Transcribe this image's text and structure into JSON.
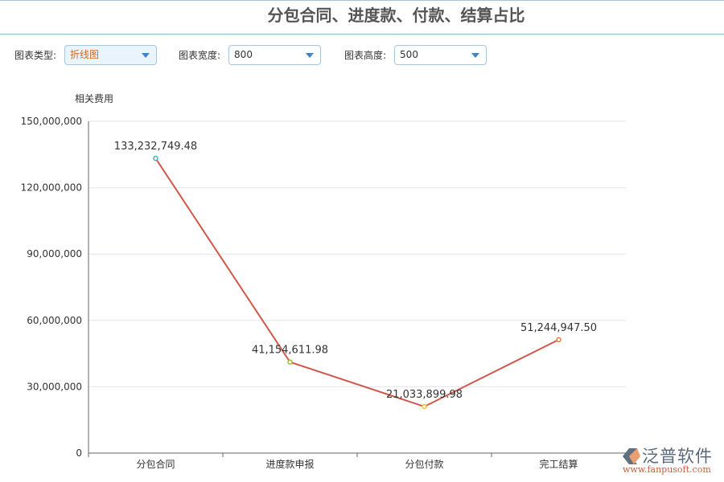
{
  "title": "分包合同、进度款、付款、结算占比",
  "controls": [
    {
      "label": "图表类型:",
      "value": "折线图"
    },
    {
      "label": "图表宽度:",
      "value": "800"
    },
    {
      "label": "图表高度:",
      "value": "500"
    }
  ],
  "logo": {
    "name": "泛普软件",
    "url": "www.fanpusoft.com"
  },
  "chart_data": {
    "type": "line",
    "title": "",
    "ylabel": "相关费用",
    "xlabel": "",
    "categories": [
      "分包合同",
      "进度款申报",
      "分包付款",
      "完工结算"
    ],
    "values": [
      133232749.48,
      41154611.98,
      21033899.98,
      51244947.5
    ],
    "data_labels": [
      "133,232,749.48",
      "41,154,611.98",
      "21,033,899.98",
      "51,244,947.50"
    ],
    "yticks": [
      "0",
      "30,000,000",
      "60,000,000",
      "90,000,000",
      "120,000,000",
      "150,000,000"
    ],
    "ylim": [
      0,
      150000000
    ],
    "grid": true,
    "line_color": "#d0574b",
    "marker_colors": [
      "#3fb1c8",
      "#a4b83a",
      "#f2c233",
      "#e27c3e"
    ]
  }
}
